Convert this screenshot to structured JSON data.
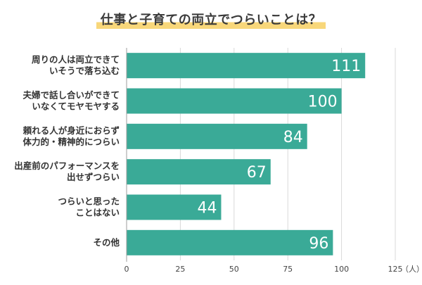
{
  "chart_data": {
    "type": "bar",
    "orientation": "horizontal",
    "title": "仕事と子育ての両立でつらいことは？",
    "categories": [
      [
        "周りの人は両立できて",
        "いそうで落ち込む"
      ],
      [
        "夫婦で話し合いができて",
        "いなくてモヤモヤする"
      ],
      [
        "頼れる人が身近におらず",
        "体力的・精神的につらい"
      ],
      [
        "出産前のパフォーマンスを",
        "出せずつらい"
      ],
      [
        "つらいと思った",
        "ことはない"
      ],
      [
        "その他"
      ]
    ],
    "values": [
      111,
      100,
      84,
      67,
      44,
      96
    ],
    "xlim": [
      0,
      125
    ],
    "xticks": [
      0,
      25,
      50,
      75,
      100,
      125
    ],
    "unit": "（人）",
    "grid": true,
    "bar_color": "#3aaa97"
  }
}
